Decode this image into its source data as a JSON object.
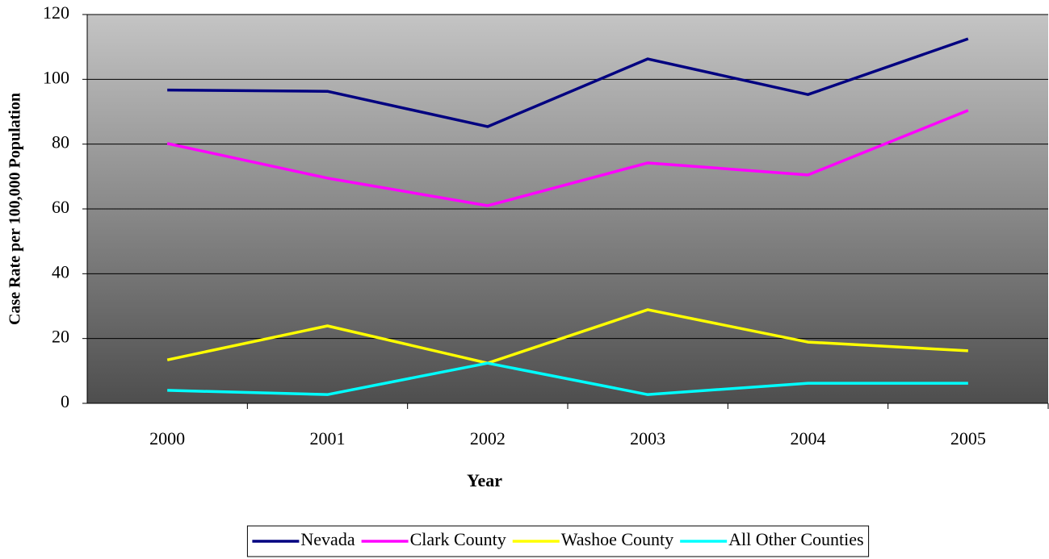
{
  "chart_data": {
    "type": "line",
    "xlabel": "Year",
    "ylabel": "Case Rate per 100,000 Population",
    "categories": [
      "2000",
      "2001",
      "2002",
      "2003",
      "2004",
      "2005"
    ],
    "series": [
      {
        "name": "Nevada",
        "color": "#000080",
        "values": [
          96.7,
          96.3,
          85.4,
          106.3,
          95.3,
          112.5
        ]
      },
      {
        "name": "Clark County",
        "color": "#ff00ff",
        "values": [
          80.2,
          69.5,
          61,
          74.2,
          70.5,
          90.4
        ]
      },
      {
        "name": "Washoe County",
        "color": "#ffff00",
        "values": [
          13.4,
          23.9,
          12.4,
          28.9,
          18.9,
          16.2
        ]
      },
      {
        "name": "All Other Counties",
        "color": "#00ffff",
        "values": [
          4,
          2.7,
          12.4,
          2.7,
          6.2,
          6.2
        ]
      }
    ],
    "ylim": [
      0,
      120
    ],
    "yticks": [
      0,
      20,
      40,
      60,
      80,
      100,
      120
    ],
    "grid": true,
    "legend": "bottom"
  }
}
